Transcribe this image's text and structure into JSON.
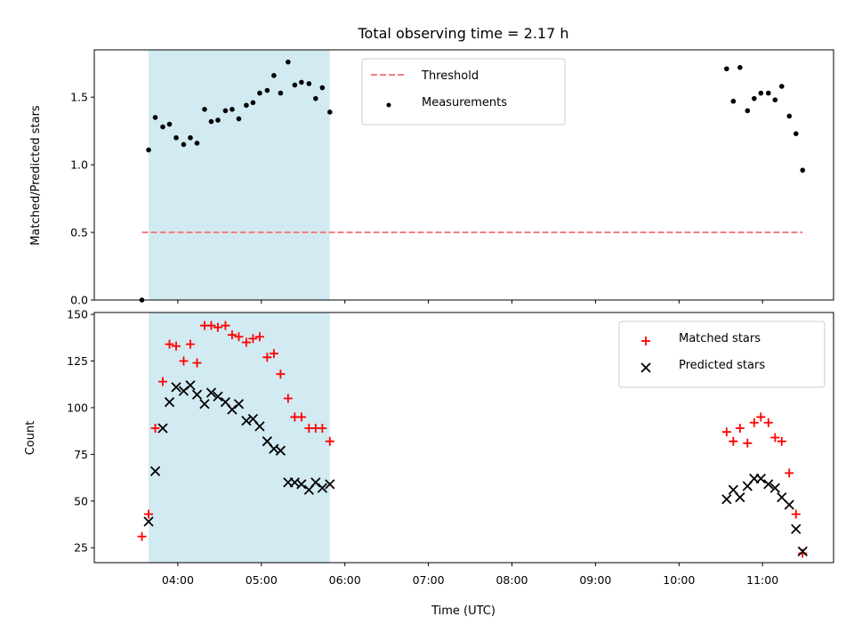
{
  "chart_data": {
    "title": "Total observing time = 2.17 h",
    "xlabel": "Time (UTC)",
    "x_unit": "hours UTC",
    "xlim": [
      3.0,
      11.85
    ],
    "x_ticks": [
      {
        "value": 4,
        "label": "04:00"
      },
      {
        "value": 5,
        "label": "05:00"
      },
      {
        "value": 6,
        "label": "06:00"
      },
      {
        "value": 7,
        "label": "07:00"
      },
      {
        "value": 8,
        "label": "08:00"
      },
      {
        "value": 9,
        "label": "09:00"
      },
      {
        "value": 10,
        "label": "10:00"
      },
      {
        "value": 11,
        "label": "11:00"
      }
    ],
    "shaded_span": {
      "x0": 3.65,
      "x1": 5.82,
      "color": "#add8e6"
    },
    "panels": [
      {
        "type": "scatter",
        "ylabel": "Matched/Predicted stars",
        "ylim": [
          0,
          1.85
        ],
        "y_ticks": [
          {
            "value": 0,
            "label": "0.0"
          },
          {
            "value": 0.5,
            "label": "0.5"
          },
          {
            "value": 1.0,
            "label": "1.0"
          },
          {
            "value": 1.5,
            "label": "1.5"
          }
        ],
        "legend_position": "upper-center",
        "threshold": {
          "name": "Threshold",
          "y": 0.5,
          "x0": 3.57,
          "x1": 11.48,
          "color": "#f08080",
          "style": "dashed"
        },
        "series": [
          {
            "name": "Measurements",
            "marker": "dot",
            "color": "#000000",
            "points": [
              [
                3.57,
                0.0
              ],
              [
                3.65,
                1.11
              ],
              [
                3.73,
                1.35
              ],
              [
                3.82,
                1.28
              ],
              [
                3.9,
                1.3
              ],
              [
                3.98,
                1.2
              ],
              [
                4.07,
                1.15
              ],
              [
                4.15,
                1.2
              ],
              [
                4.23,
                1.16
              ],
              [
                4.32,
                1.41
              ],
              [
                4.4,
                1.32
              ],
              [
                4.48,
                1.33
              ],
              [
                4.57,
                1.4
              ],
              [
                4.65,
                1.41
              ],
              [
                4.73,
                1.34
              ],
              [
                4.82,
                1.44
              ],
              [
                4.9,
                1.46
              ],
              [
                4.98,
                1.53
              ],
              [
                5.07,
                1.55
              ],
              [
                5.15,
                1.66
              ],
              [
                5.23,
                1.53
              ],
              [
                5.32,
                1.76
              ],
              [
                5.4,
                1.59
              ],
              [
                5.48,
                1.61
              ],
              [
                5.57,
                1.6
              ],
              [
                5.65,
                1.49
              ],
              [
                5.73,
                1.57
              ],
              [
                5.82,
                1.39
              ],
              [
                10.57,
                1.71
              ],
              [
                10.65,
                1.47
              ],
              [
                10.73,
                1.72
              ],
              [
                10.82,
                1.4
              ],
              [
                10.9,
                1.49
              ],
              [
                10.98,
                1.53
              ],
              [
                11.07,
                1.53
              ],
              [
                11.15,
                1.48
              ],
              [
                11.23,
                1.58
              ],
              [
                11.32,
                1.36
              ],
              [
                11.4,
                1.23
              ],
              [
                11.48,
                0.96
              ]
            ]
          }
        ]
      },
      {
        "type": "scatter",
        "ylabel": "Count",
        "ylim": [
          17,
          151
        ],
        "y_ticks": [
          {
            "value": 25,
            "label": "25"
          },
          {
            "value": 50,
            "label": "50"
          },
          {
            "value": 75,
            "label": "75"
          },
          {
            "value": 100,
            "label": "100"
          },
          {
            "value": 125,
            "label": "125"
          },
          {
            "value": 150,
            "label": "150"
          }
        ],
        "legend_position": "upper-right",
        "series": [
          {
            "name": "Matched stars",
            "marker": "plus",
            "color": "#ff0000",
            "points": [
              [
                3.57,
                31
              ],
              [
                3.65,
                43
              ],
              [
                3.73,
                89
              ],
              [
                3.82,
                114
              ],
              [
                3.9,
                134
              ],
              [
                3.98,
                133
              ],
              [
                4.07,
                125
              ],
              [
                4.15,
                134
              ],
              [
                4.23,
                124
              ],
              [
                4.32,
                144
              ],
              [
                4.4,
                144
              ],
              [
                4.48,
                143
              ],
              [
                4.57,
                144
              ],
              [
                4.65,
                139
              ],
              [
                4.73,
                138
              ],
              [
                4.82,
                135
              ],
              [
                4.9,
                137
              ],
              [
                4.98,
                138
              ],
              [
                5.07,
                127
              ],
              [
                5.15,
                129
              ],
              [
                5.23,
                118
              ],
              [
                5.32,
                105
              ],
              [
                5.4,
                95
              ],
              [
                5.48,
                95
              ],
              [
                5.57,
                89
              ],
              [
                5.65,
                89
              ],
              [
                5.73,
                89
              ],
              [
                5.82,
                82
              ],
              [
                10.57,
                87
              ],
              [
                10.65,
                82
              ],
              [
                10.73,
                89
              ],
              [
                10.82,
                81
              ],
              [
                10.9,
                92
              ],
              [
                10.98,
                95
              ],
              [
                11.07,
                92
              ],
              [
                11.15,
                84
              ],
              [
                11.23,
                82
              ],
              [
                11.32,
                65
              ],
              [
                11.4,
                43
              ],
              [
                11.48,
                22
              ]
            ]
          },
          {
            "name": "Predicted stars",
            "marker": "x",
            "color": "#000000",
            "points": [
              [
                3.65,
                39
              ],
              [
                3.73,
                66
              ],
              [
                3.82,
                89
              ],
              [
                3.9,
                103
              ],
              [
                3.98,
                111
              ],
              [
                4.07,
                109
              ],
              [
                4.15,
                112
              ],
              [
                4.23,
                107
              ],
              [
                4.32,
                102
              ],
              [
                4.4,
                108
              ],
              [
                4.48,
                106
              ],
              [
                4.57,
                103
              ],
              [
                4.65,
                99
              ],
              [
                4.73,
                102
              ],
              [
                4.82,
                93
              ],
              [
                4.9,
                94
              ],
              [
                4.98,
                90
              ],
              [
                5.07,
                82
              ],
              [
                5.15,
                78
              ],
              [
                5.23,
                77
              ],
              [
                5.32,
                60
              ],
              [
                5.4,
                60
              ],
              [
                5.48,
                59
              ],
              [
                5.57,
                56
              ],
              [
                5.65,
                60
              ],
              [
                5.73,
                57
              ],
              [
                5.82,
                59
              ],
              [
                10.57,
                51
              ],
              [
                10.65,
                56
              ],
              [
                10.73,
                52
              ],
              [
                10.82,
                58
              ],
              [
                10.9,
                62
              ],
              [
                10.98,
                62
              ],
              [
                11.07,
                59
              ],
              [
                11.15,
                57
              ],
              [
                11.23,
                52
              ],
              [
                11.32,
                48
              ],
              [
                11.4,
                35
              ],
              [
                11.48,
                23
              ]
            ]
          }
        ]
      }
    ]
  }
}
